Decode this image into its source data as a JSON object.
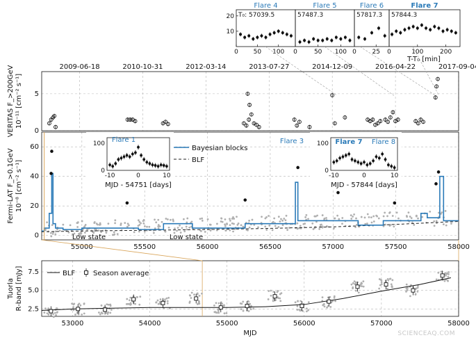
{
  "chart_data": [
    {
      "type": "scatter",
      "panel": "flare-zoom",
      "xlabel": "T-T₀ [min]",
      "yticks": [
        10,
        20
      ],
      "ylim": [
        0,
        24
      ],
      "subplots": [
        {
          "title": "Flare 4",
          "label": "T₀: 57039.5",
          "xlim": [
            0,
            140
          ],
          "xticks": [
            0,
            50,
            100
          ],
          "x": [
            10,
            20,
            30,
            40,
            50,
            60,
            70,
            80,
            90,
            100,
            110,
            120,
            130
          ],
          "y": [
            8,
            6,
            7,
            5,
            6,
            7,
            6,
            8,
            9,
            10,
            9,
            8,
            7
          ],
          "highlight": false
        },
        {
          "title": "Flare 5",
          "label": "57487.3",
          "xlim": [
            0,
            130
          ],
          "xticks": [
            0,
            50,
            100
          ],
          "x": [
            10,
            20,
            30,
            40,
            50,
            60,
            70,
            80,
            90,
            100,
            110,
            120
          ],
          "y": [
            3,
            4,
            3,
            5,
            4,
            4,
            5,
            4,
            6,
            5,
            6,
            4
          ],
          "highlight": false
        },
        {
          "title": "Flare 6",
          "label": "57817.3",
          "xlim": [
            0,
            40
          ],
          "xticks": [
            0,
            25
          ],
          "x": [
            5,
            12,
            20,
            28,
            35
          ],
          "y": [
            6,
            5,
            9,
            12,
            7
          ],
          "highlight": false
        },
        {
          "title": "Flare 7",
          "label": "57844.3",
          "xlim": [
            0,
            250
          ],
          "xticks": [
            0,
            100,
            200
          ],
          "x": [
            10,
            25,
            40,
            55,
            70,
            85,
            100,
            115,
            130,
            145,
            160,
            175,
            190,
            205,
            220,
            235
          ],
          "y": [
            8,
            10,
            9,
            11,
            12,
            13,
            12,
            14,
            12,
            11,
            13,
            12,
            10,
            11,
            10,
            9
          ],
          "highlight": true
        }
      ]
    },
    {
      "type": "scatter",
      "panel": "veritas",
      "ylabel": "VERITAS F_>200GeV\n10⁻¹¹ [cm⁻² s⁻¹]",
      "xlim": [
        54700,
        58000
      ],
      "ylim": [
        0,
        8
      ],
      "yticks": [
        0,
        5
      ],
      "top_axis_dates": [
        "2009-06-18",
        "2010-10-31",
        "2012-03-14",
        "2013-07-27",
        "2014-12-09",
        "2016-04-22",
        "2017-09-04"
      ],
      "top_axis_mjd": [
        55000,
        55500,
        56000,
        56500,
        57000,
        57500,
        58000
      ],
      "x": [
        54760,
        54775,
        54790,
        54800,
        54810,
        55380,
        55400,
        55420,
        55440,
        55660,
        55680,
        55700,
        56300,
        56320,
        56340,
        56360,
        56380,
        56400,
        56420,
        56330,
        56345,
        56700,
        56720,
        56740,
        56820,
        57000,
        57020,
        57100,
        57280,
        57300,
        57320,
        57340,
        57360,
        57380,
        57420,
        57440,
        57460,
        57480,
        57500,
        57520,
        57660,
        57680,
        57700,
        57720,
        57817,
        57825,
        57835
      ],
      "y": [
        1.0,
        1.5,
        1.8,
        2.0,
        0.5,
        1.5,
        1.5,
        1.5,
        1.3,
        1.0,
        1.2,
        0.9,
        1.0,
        0.7,
        1.5,
        2.2,
        1.0,
        0.8,
        0.5,
        5.0,
        3.5,
        1.5,
        0.7,
        1.2,
        0.5,
        4.8,
        1.0,
        1.8,
        1.5,
        1.3,
        1.5,
        0.8,
        1.0,
        1.3,
        1.5,
        1.2,
        1.8,
        2.5,
        1.3,
        1.5,
        1.3,
        1.0,
        1.5,
        1.2,
        4.5,
        6.0,
        7.0
      ],
      "flares": [
        {
          "name": "Flare 4",
          "mjd": 57039.5
        },
        {
          "name": "Flare 5",
          "mjd": 57487.3
        },
        {
          "name": "Flare 6",
          "mjd": 57817.3
        },
        {
          "name": "Flare 7",
          "mjd": 57844.3
        }
      ]
    },
    {
      "type": "line",
      "panel": "fermi",
      "ylabel": "Fermi-LAT F_>0.1GeV\n10⁻⁸ [cm⁻² s⁻¹]",
      "xlim": [
        54680,
        58000
      ],
      "ylim": [
        -3,
        70
      ],
      "yticks": [
        0,
        20,
        40,
        60
      ],
      "xticks": [
        55000,
        55500,
        56000,
        56500,
        57000,
        57500,
        58000
      ],
      "annotations": [
        "Flare 1",
        "Flare 3",
        "Flare 7",
        "Flare 8",
        "Low state",
        "Low state"
      ],
      "series": [
        {
          "name": "Bayesian blocks",
          "style": "steps",
          "x": [
            54680,
            54700,
            54740,
            54760,
            54770,
            54790,
            54850,
            55000,
            55450,
            55650,
            55880,
            56300,
            56700,
            56720,
            57200,
            57400,
            57700,
            57750,
            57850,
            57880,
            58000
          ],
          "y": [
            3,
            5,
            15,
            42,
            8,
            5,
            4,
            5,
            4,
            8,
            5,
            8,
            36,
            10,
            7,
            10,
            15,
            12,
            40,
            10,
            10
          ]
        },
        {
          "name": "BLF",
          "style": "dashed",
          "x": [
            54680,
            55000,
            55500,
            56000,
            56500,
            57000,
            57500,
            58000
          ],
          "y": [
            2.5,
            3,
            3.5,
            4,
            4.8,
            5.8,
            7.5,
            9.5
          ]
        }
      ],
      "peaks": [
        {
          "x": 54760,
          "y": 57
        },
        {
          "x": 54755,
          "y": 42
        },
        {
          "x": 55360,
          "y": 22
        },
        {
          "x": 56300,
          "y": 24
        },
        {
          "x": 56720,
          "y": 46
        },
        {
          "x": 57040,
          "y": 29
        },
        {
          "x": 57490,
          "y": 22
        },
        {
          "x": 57820,
          "y": 35
        },
        {
          "x": 57840,
          "y": 43
        }
      ]
    },
    {
      "type": "scatter",
      "panel": "flare1-inset",
      "title": "Flare 1",
      "xlabel": "MJD - 54751 [days]",
      "xlim": [
        -11,
        11
      ],
      "xticks": [
        -10,
        0,
        10
      ],
      "ylim": [
        0,
        120
      ],
      "yticks": [
        0,
        100
      ],
      "x": [
        -10,
        -9,
        -8,
        -7,
        -6,
        -5,
        -4,
        -3,
        -2,
        -1,
        0,
        1,
        2,
        3,
        4,
        5,
        6,
        7,
        8,
        9,
        10
      ],
      "y": [
        20,
        15,
        25,
        40,
        45,
        50,
        55,
        50,
        60,
        65,
        85,
        55,
        40,
        30,
        25,
        20,
        18,
        15,
        20,
        18,
        15
      ]
    },
    {
      "type": "scatter",
      "panel": "flare78-inset",
      "title": "Flare 7 / Flare 8",
      "xlabel": "MJD - 57844 [days]",
      "xlim": [
        -11,
        11
      ],
      "xticks": [
        -10,
        0,
        10
      ],
      "ylim": [
        0,
        120
      ],
      "yticks": [
        0,
        100
      ],
      "x": [
        -10,
        -9,
        -8,
        -7,
        -6,
        -5,
        -4,
        -3,
        -2,
        -1,
        0,
        1,
        2,
        3,
        4,
        5,
        6,
        7,
        8,
        9,
        10
      ],
      "y": [
        30,
        35,
        45,
        50,
        55,
        60,
        40,
        35,
        30,
        25,
        30,
        20,
        25,
        35,
        50,
        45,
        60,
        40,
        20,
        15,
        10
      ]
    },
    {
      "type": "scatter",
      "panel": "tuorla",
      "ylabel": "Tuorla\nR-band [mJy]",
      "xlabel": "MJD",
      "xlim": [
        52600,
        58000
      ],
      "ylim": [
        1.5,
        9
      ],
      "yticks": [
        2.5,
        5.0,
        7.5
      ],
      "xticks": [
        53000,
        54000,
        55000,
        56000,
        57000,
        58000
      ],
      "series": [
        {
          "name": "BLF",
          "x": [
            52600,
            53000,
            53500,
            54000,
            54500,
            55000,
            55500,
            56000,
            56500,
            57000,
            57500,
            57900
          ],
          "y": [
            2.3,
            2.5,
            2.6,
            2.7,
            2.7,
            2.7,
            2.8,
            3.1,
            3.9,
            4.9,
            5.8,
            6.7
          ]
        },
        {
          "name": "Season average",
          "x": [
            52720,
            53070,
            53420,
            53790,
            54170,
            54600,
            54920,
            55260,
            55620,
            55970,
            56320,
            56690,
            57060,
            57410,
            57790
          ],
          "y": [
            2.2,
            2.5,
            2.4,
            3.8,
            3.3,
            3.9,
            2.7,
            2.9,
            4.2,
            2.9,
            3.5,
            5.5,
            5.8,
            5.0,
            7.0
          ]
        }
      ]
    }
  ],
  "watermark": "SCIENCEAQ.COM",
  "colors": {
    "blocks": "#2a7ab8",
    "points": "#111111",
    "scatter_gray": "#b0b0b0",
    "highlight": "#d9a55a"
  }
}
